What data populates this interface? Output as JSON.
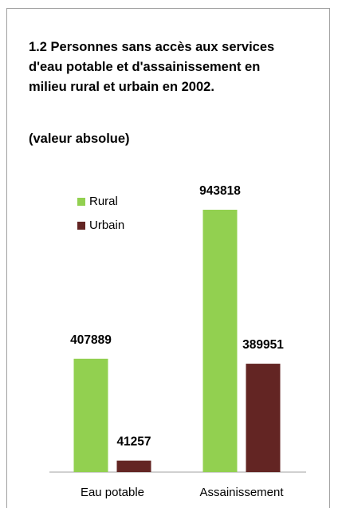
{
  "chart_data": {
    "type": "bar",
    "title": "1.2 Personnes sans accès aux services d'eau potable et d'assainissement en milieu rural et urbain en 2002.",
    "subtitle": "(valeur absolue)",
    "categories": [
      "Eau potable",
      "Assainissement"
    ],
    "series": [
      {
        "name": "Rural",
        "color": "#92d050",
        "values": [
          407889,
          943818
        ]
      },
      {
        "name": "Urbain",
        "color": "#632523",
        "values": [
          41257,
          389951
        ]
      }
    ],
    "legend": "upper left"
  }
}
